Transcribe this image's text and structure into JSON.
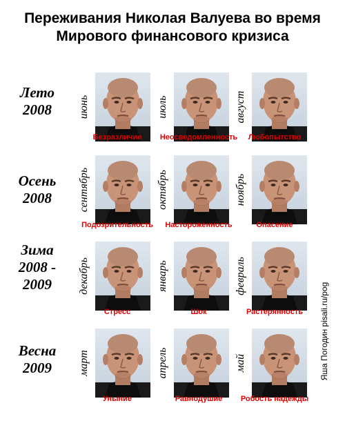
{
  "title": {
    "line1": "Переживания Николая Валуева во время",
    "line2": "Мирового финансового кризиса"
  },
  "seasons": [
    {
      "line1": "Лето",
      "line2": "2008",
      "line3": ""
    },
    {
      "line1": "Осень",
      "line2": "2008",
      "line3": ""
    },
    {
      "line1": "Зима",
      "line2": "2008 -",
      "line3": "2009"
    },
    {
      "line1": "Весна",
      "line2": "2009",
      "line3": ""
    }
  ],
  "rows": [
    [
      {
        "month": "июнь",
        "emotion": "Безразличие"
      },
      {
        "month": "июль",
        "emotion": "Неосведомленность"
      },
      {
        "month": "август",
        "emotion": "Любопытство"
      }
    ],
    [
      {
        "month": "сентябрь",
        "emotion": "Подозрительность"
      },
      {
        "month": "октябрь",
        "emotion": "Настороженность"
      },
      {
        "month": "ноябрь",
        "emotion": "Опасение"
      }
    ],
    [
      {
        "month": "декабрь",
        "emotion": "Стресс"
      },
      {
        "month": "январь",
        "emotion": "Шок"
      },
      {
        "month": "февраль",
        "emotion": "Растерянность"
      }
    ],
    [
      {
        "month": "март",
        "emotion": "Уныние"
      },
      {
        "month": "апрель",
        "emotion": "Равнодушие"
      },
      {
        "month": "май",
        "emotion": "Робость надежды"
      }
    ]
  ],
  "credit": "Яша Погодин pisali.ru/pog",
  "colors": {
    "caption": "#e00000",
    "background": "#ffffff",
    "text": "#000000"
  },
  "photo_subject": "face-photo"
}
